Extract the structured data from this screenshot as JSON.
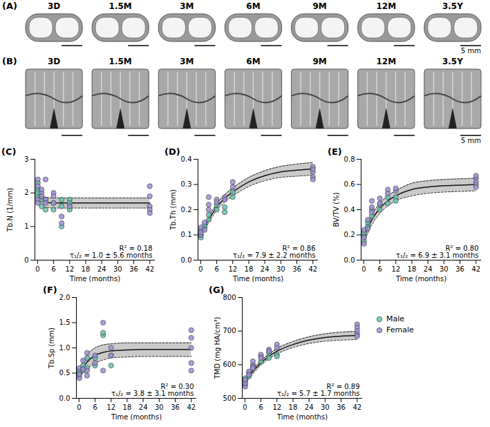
{
  "images": [
    {
      "title": "(A)",
      "labels": [
        "3D",
        "1.5M",
        "3M",
        "6M",
        "9M",
        "12M",
        "3.5Y"
      ],
      "scale_label": "5 mm"
    },
    {
      "title": "(B)",
      "labels": [
        "3D",
        "1.5M",
        "3M",
        "6M",
        "9M",
        "12M",
        "3.5Y"
      ],
      "scale_label": "5 mm"
    }
  ],
  "chart_data": [
    {
      "type": "scatter",
      "title": "(C)",
      "x_label": "Time (months)",
      "y_label": "Tb.N (1/mm)",
      "xlim": [
        -1,
        44
      ],
      "xticks": [
        0,
        6,
        12,
        18,
        24,
        30,
        36,
        42
      ],
      "ylim": [
        0,
        3
      ],
      "yticks": [
        0,
        1,
        2,
        3
      ],
      "series": [
        {
          "name": "Male",
          "color": "#66c2b0",
          "marker": "circle",
          "x": [
            0.1,
            0.1,
            0.1,
            0.1,
            1.5,
            1.5,
            3,
            3,
            6,
            6,
            9,
            9,
            9,
            12,
            12,
            12,
            12
          ],
          "values": [
            2.3,
            2.1,
            1.9,
            2.0,
            1.8,
            1.6,
            1.8,
            1.5,
            1.7,
            1.5,
            1.0,
            1.6,
            1.8,
            1.8,
            1.6,
            1.5,
            1.7
          ]
        },
        {
          "name": "Female",
          "color": "#9d8fd6",
          "marker": "circle",
          "x": [
            0.1,
            0.1,
            0.1,
            0.1,
            1.5,
            1.5,
            1.5,
            3,
            3,
            3,
            6,
            6,
            6,
            9,
            9,
            12,
            42,
            42,
            42,
            42,
            42
          ],
          "values": [
            2.4,
            2.2,
            1.8,
            1.7,
            2.0,
            1.9,
            2.1,
            2.4,
            1.8,
            1.7,
            2.0,
            1.9,
            1.7,
            1.3,
            1.1,
            1.6,
            2.2,
            1.9,
            1.6,
            1.5,
            1.4
          ]
        }
      ],
      "fit": {
        "x": [
          0,
          3,
          6,
          9,
          12,
          18,
          24,
          30,
          36,
          42
        ],
        "values": [
          2.0,
          1.72,
          1.7,
          1.7,
          1.7,
          1.7,
          1.7,
          1.7,
          1.7,
          1.7
        ],
        "lower": [
          1.85,
          1.57,
          1.55,
          1.55,
          1.55,
          1.55,
          1.55,
          1.55,
          1.55,
          1.55
        ],
        "upper": [
          2.15,
          1.87,
          1.85,
          1.85,
          1.85,
          1.85,
          1.85,
          1.85,
          1.85,
          1.85
        ]
      },
      "annotations": [
        "R² = 0.18",
        "τ₁/₂ = 1.0 ± 5.6 months"
      ]
    },
    {
      "type": "scatter",
      "title": "(D)",
      "x_label": "Time (months)",
      "y_label": "Tb.Th (mm)",
      "xlim": [
        -1,
        44
      ],
      "xticks": [
        0,
        6,
        12,
        18,
        24,
        30,
        36,
        42
      ],
      "ylim": [
        0,
        0.4
      ],
      "yticks": [
        {
          "value": 0,
          "label": "0.0"
        },
        0.1,
        0.2,
        0.3,
        0.4
      ],
      "series": [
        {
          "name": "Male",
          "color": "#66c2b0",
          "marker": "circle",
          "x": [
            0.1,
            0.1,
            0.1,
            1.5,
            1.5,
            3,
            3,
            6,
            6,
            9,
            9,
            12,
            12
          ],
          "values": [
            0.09,
            0.1,
            0.12,
            0.13,
            0.14,
            0.18,
            0.16,
            0.22,
            0.2,
            0.19,
            0.21,
            0.25,
            0.27
          ]
        },
        {
          "name": "Female",
          "color": "#9d8fd6",
          "marker": "circle",
          "x": [
            0.1,
            0.1,
            0.1,
            1.5,
            1.5,
            3,
            3,
            3,
            6,
            6,
            9,
            9,
            12,
            12,
            42,
            42,
            42,
            42,
            42
          ],
          "values": [
            0.1,
            0.11,
            0.13,
            0.12,
            0.15,
            0.25,
            0.22,
            0.2,
            0.24,
            0.23,
            0.25,
            0.24,
            0.31,
            0.29,
            0.37,
            0.35,
            0.33,
            0.36,
            0.32
          ]
        }
      ],
      "fit": {
        "x": [
          0,
          3,
          6,
          9,
          12,
          18,
          24,
          30,
          36,
          42
        ],
        "values": [
          0.1,
          0.16,
          0.21,
          0.245,
          0.27,
          0.31,
          0.335,
          0.35,
          0.357,
          0.362
        ],
        "lower": [
          0.09,
          0.148,
          0.197,
          0.23,
          0.254,
          0.292,
          0.315,
          0.328,
          0.333,
          0.337
        ],
        "upper": [
          0.11,
          0.172,
          0.223,
          0.26,
          0.286,
          0.328,
          0.355,
          0.372,
          0.381,
          0.387
        ]
      },
      "annotations": [
        "R² = 0.86",
        "τ₁/₂ = 7.9 ± 2.2 months"
      ]
    },
    {
      "type": "scatter",
      "title": "(E)",
      "x_label": "Time (months)",
      "y_label": "BV/TV (%)",
      "xlim": [
        -1,
        44
      ],
      "xticks": [
        0,
        6,
        12,
        18,
        24,
        30,
        36,
        42
      ],
      "ylim": [
        0,
        0.8
      ],
      "yticks": [
        {
          "value": 0,
          "label": "0.0"
        },
        0.2,
        0.4,
        0.6,
        0.8
      ],
      "series": [
        {
          "name": "Male",
          "color": "#66c2b0",
          "marker": "circle",
          "x": [
            0.1,
            0.1,
            0.1,
            1.5,
            1.5,
            3,
            3,
            6,
            6,
            9,
            9,
            12,
            12
          ],
          "values": [
            0.15,
            0.2,
            0.22,
            0.27,
            0.3,
            0.35,
            0.4,
            0.44,
            0.4,
            0.45,
            0.5,
            0.5,
            0.47
          ]
        },
        {
          "name": "Female",
          "color": "#9d8fd6",
          "marker": "circle",
          "x": [
            0.1,
            0.1,
            0.1,
            1.5,
            1.5,
            3,
            3,
            3,
            6,
            6,
            9,
            9,
            12,
            12,
            42,
            42,
            42,
            42,
            42
          ],
          "values": [
            0.13,
            0.18,
            0.24,
            0.25,
            0.32,
            0.47,
            0.42,
            0.38,
            0.49,
            0.45,
            0.53,
            0.56,
            0.55,
            0.57,
            0.65,
            0.62,
            0.6,
            0.58,
            0.67
          ]
        }
      ],
      "fit": {
        "x": [
          0,
          3,
          6,
          9,
          12,
          18,
          24,
          30,
          36,
          42
        ],
        "values": [
          0.18,
          0.32,
          0.41,
          0.47,
          0.51,
          0.56,
          0.58,
          0.59,
          0.595,
          0.6
        ],
        "lower": [
          0.14,
          0.28,
          0.37,
          0.43,
          0.47,
          0.51,
          0.53,
          0.54,
          0.545,
          0.55
        ],
        "upper": [
          0.22,
          0.36,
          0.45,
          0.51,
          0.55,
          0.61,
          0.63,
          0.64,
          0.645,
          0.65
        ]
      },
      "annotations": [
        "R² = 0.80",
        "τ₁/₂ = 6.9 ± 3.1 months"
      ]
    },
    {
      "type": "scatter",
      "title": "(F)",
      "x_label": "Time (months)",
      "y_label": "Tb.Sp (mm)",
      "xlim": [
        -1,
        44
      ],
      "xticks": [
        0,
        6,
        12,
        18,
        24,
        30,
        36,
        42
      ],
      "ylim": [
        0,
        2
      ],
      "yticks": [
        {
          "value": 0,
          "label": "0.0"
        },
        0.5,
        {
          "value": 1,
          "label": "1.0"
        },
        1.5,
        {
          "value": 2,
          "label": "2.0"
        }
      ],
      "series": [
        {
          "name": "Male",
          "color": "#66c2b0",
          "marker": "circle",
          "x": [
            0.1,
            0.1,
            0.1,
            1.5,
            1.5,
            3,
            3,
            6,
            6,
            9,
            9,
            12,
            12
          ],
          "values": [
            0.45,
            0.5,
            0.55,
            0.55,
            0.65,
            0.6,
            0.8,
            0.65,
            0.8,
            1.25,
            1.3,
            0.65,
            0.85
          ]
        },
        {
          "name": "Female",
          "color": "#9d8fd6",
          "marker": "circle",
          "x": [
            0.1,
            0.1,
            0.1,
            1.5,
            1.5,
            3,
            3,
            3,
            6,
            6,
            9,
            9,
            12,
            12,
            42,
            42,
            42,
            42,
            42
          ],
          "values": [
            0.4,
            0.48,
            0.6,
            0.58,
            0.75,
            0.9,
            0.55,
            0.45,
            0.85,
            0.7,
            1.5,
            0.55,
            0.85,
            1.0,
            1.35,
            1.2,
            1.0,
            0.7,
            0.55
          ]
        }
      ],
      "fit": {
        "x": [
          0,
          3,
          6,
          9,
          12,
          18,
          24,
          30,
          36,
          42
        ],
        "values": [
          0.48,
          0.72,
          0.85,
          0.91,
          0.94,
          0.96,
          0.97,
          0.97,
          0.97,
          0.97
        ],
        "lower": [
          0.42,
          0.58,
          0.7,
          0.76,
          0.8,
          0.82,
          0.83,
          0.83,
          0.83,
          0.83
        ],
        "upper": [
          0.54,
          0.86,
          1.0,
          1.06,
          1.08,
          1.1,
          1.1,
          1.1,
          1.1,
          1.1
        ]
      },
      "annotations": [
        "R² = 0.30",
        "τ₁/₂ = 3.8 ± 3.1 months"
      ]
    },
    {
      "type": "scatter",
      "title": "(G)",
      "x_label": "Time (months)",
      "y_label": "TMD (mg HA/cm³)",
      "xlim": [
        -1,
        44
      ],
      "xticks": [
        0,
        6,
        12,
        18,
        24,
        30,
        36,
        42
      ],
      "ylim": [
        500,
        800
      ],
      "yticks": [
        500,
        600,
        700,
        800
      ],
      "legend": "right",
      "series": [
        {
          "name": "Male",
          "color": "#66c2b0",
          "marker": "circle",
          "x": [
            0.1,
            0.1,
            0.1,
            1.5,
            1.5,
            3,
            3,
            6,
            6,
            9,
            9,
            12,
            12
          ],
          "values": [
            540,
            550,
            560,
            575,
            565,
            590,
            600,
            610,
            625,
            620,
            635,
            630,
            625
          ]
        },
        {
          "name": "Female",
          "color": "#9d8fd6",
          "marker": "circle",
          "x": [
            0.1,
            0.1,
            0.1,
            1.5,
            1.5,
            3,
            3,
            3,
            6,
            6,
            9,
            9,
            12,
            12,
            42,
            42,
            42,
            42,
            42
          ],
          "values": [
            535,
            545,
            555,
            580,
            570,
            610,
            595,
            590,
            630,
            620,
            645,
            640,
            660,
            650,
            720,
            710,
            700,
            690,
            685
          ]
        }
      ],
      "fit": {
        "x": [
          0,
          3,
          6,
          9,
          12,
          18,
          24,
          30,
          36,
          42
        ],
        "values": [
          548,
          580,
          605,
          625,
          640,
          660,
          673,
          681,
          685,
          687
        ],
        "lower": [
          541,
          573,
          598,
          618,
          632,
          651,
          663,
          670,
          673,
          675
        ],
        "upper": [
          555,
          587,
          612,
          632,
          648,
          669,
          683,
          692,
          697,
          699
        ]
      },
      "annotations": [
        "R² = 0.89",
        "τ₁/₂ = 5.7 ± 1.7 months"
      ]
    }
  ]
}
